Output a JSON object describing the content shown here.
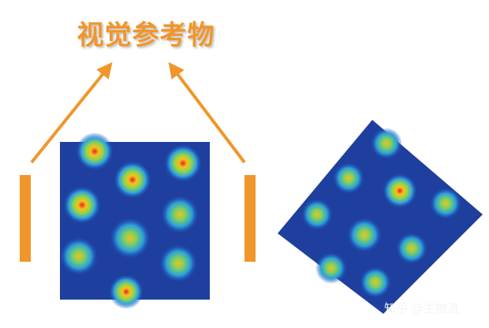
{
  "title": "视觉参考物",
  "watermark": "知乎 @生物流"
}
